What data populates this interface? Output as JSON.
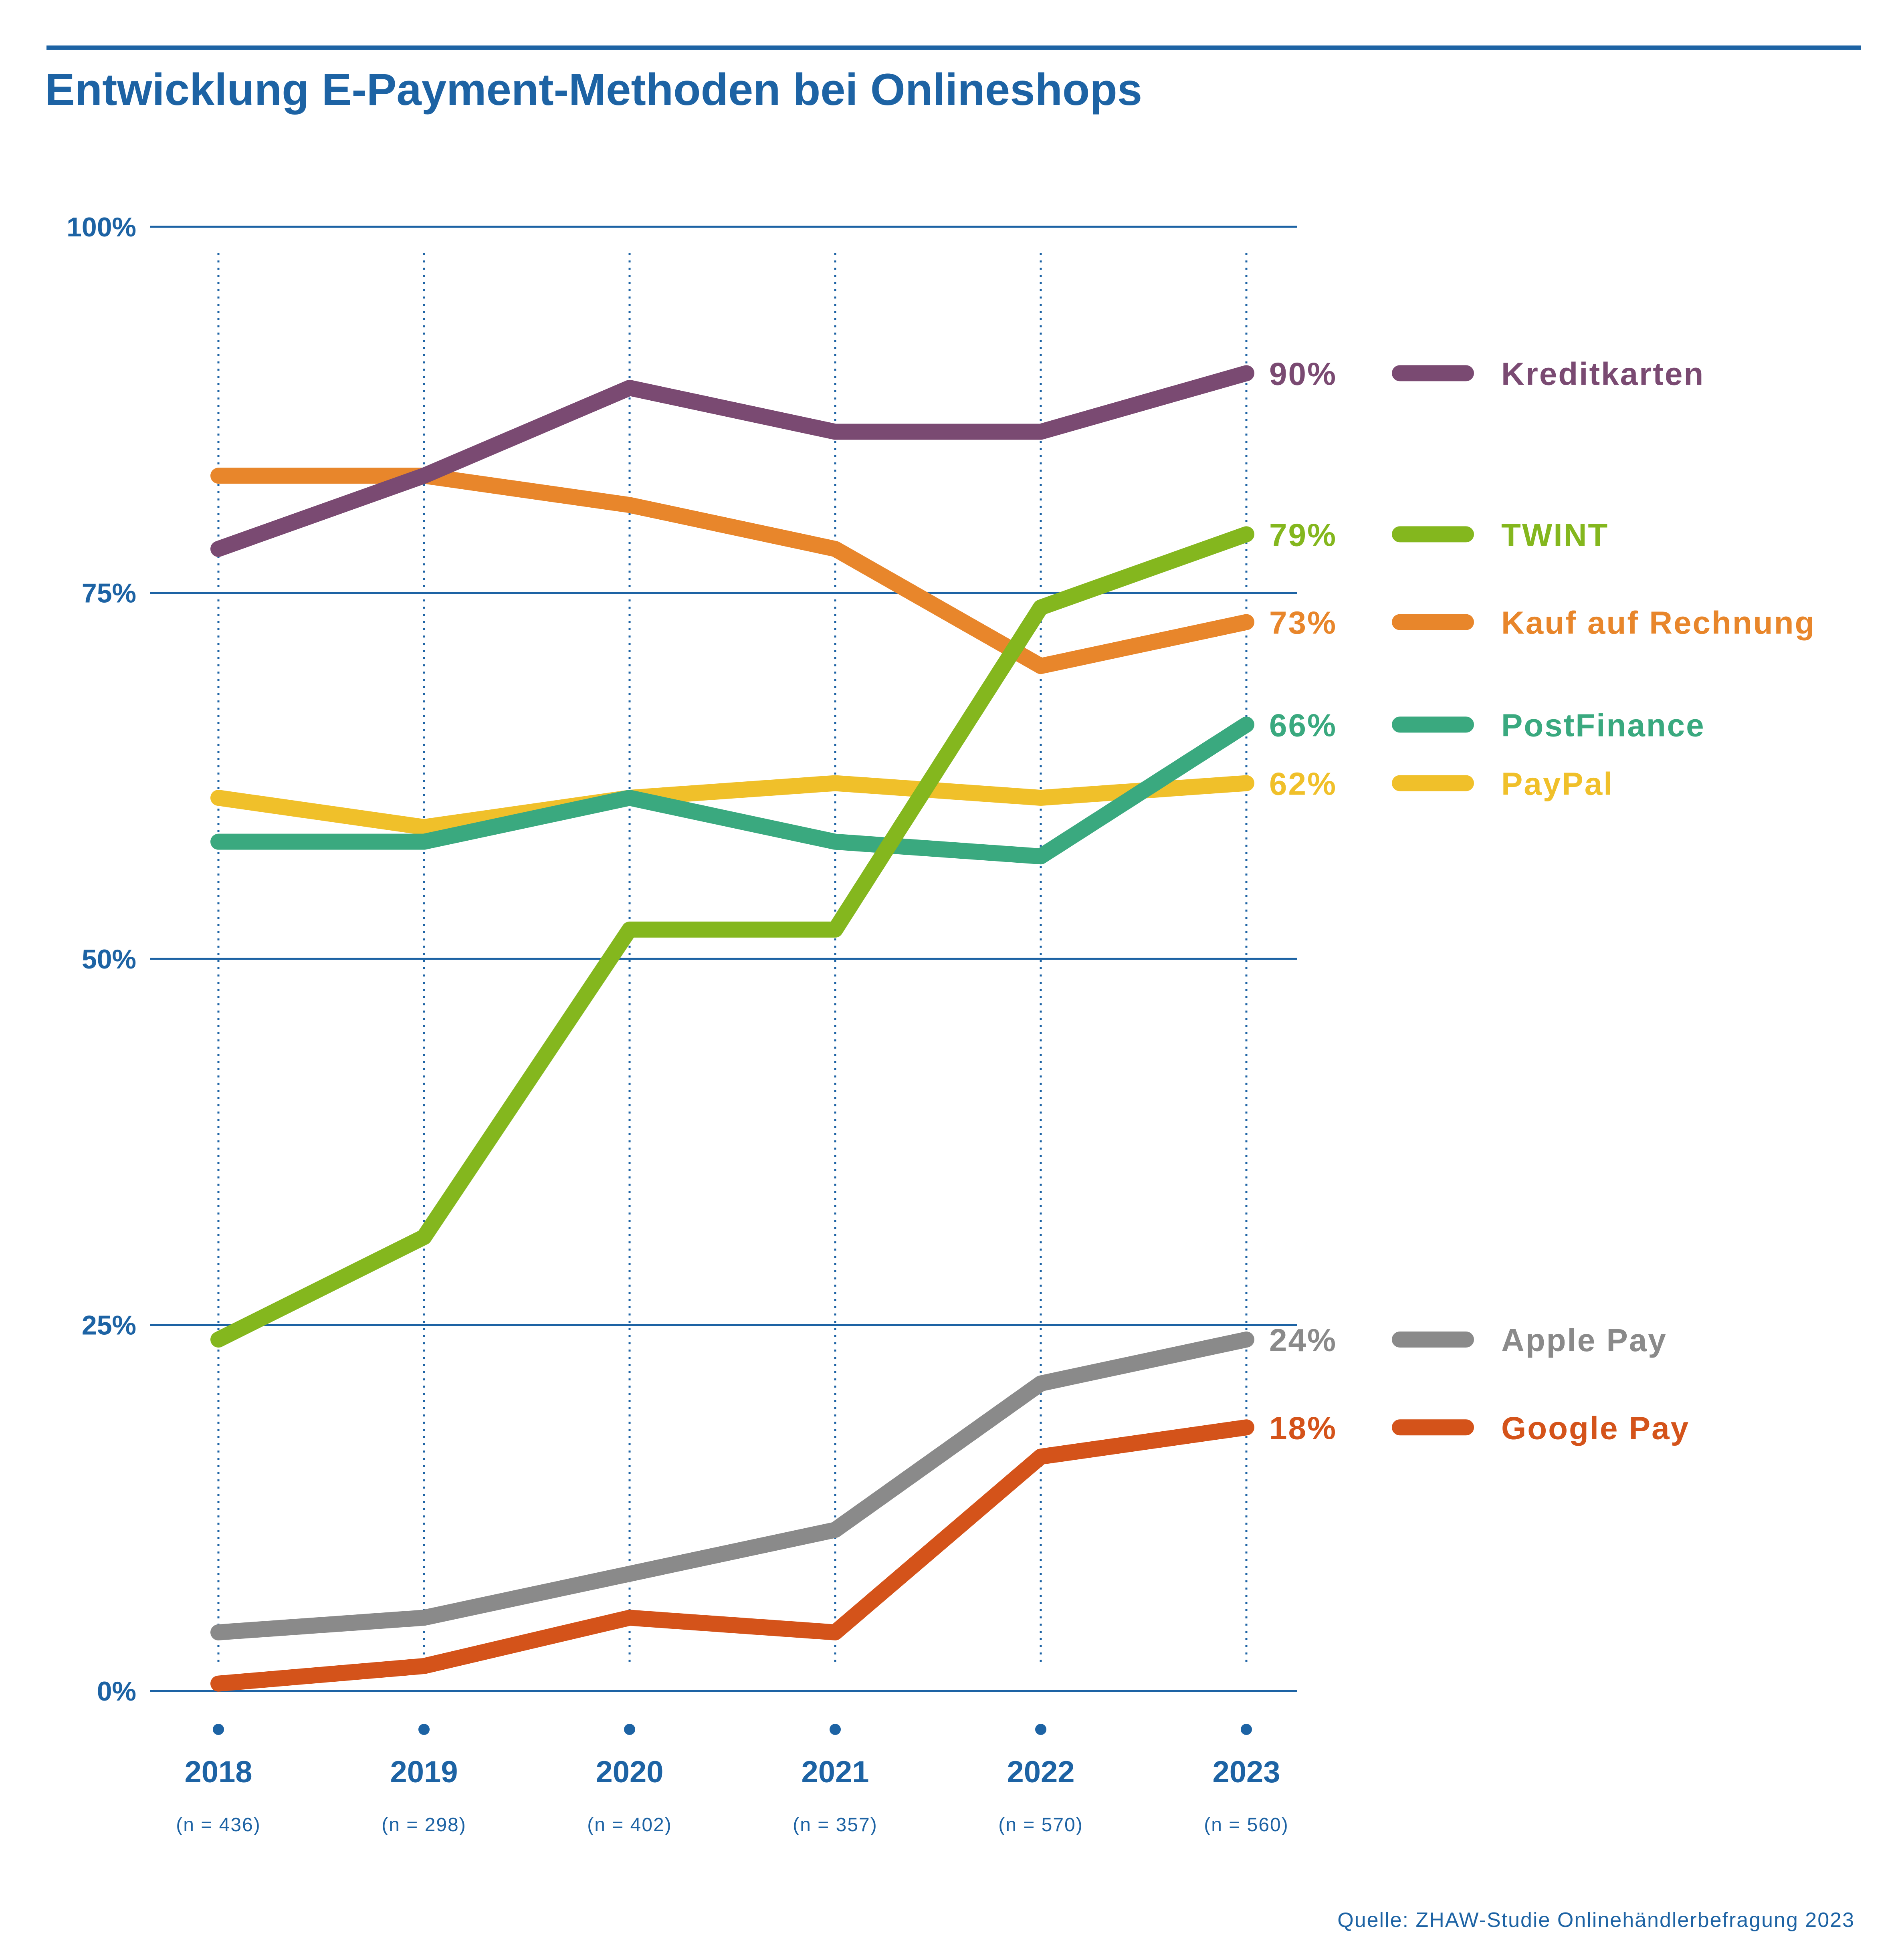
{
  "chart_data": {
    "type": "line",
    "title": "Entwicklung E-Payment-Methoden bei Onlineshops",
    "x": [
      "2018",
      "2019",
      "2020",
      "2021",
      "2022",
      "2023"
    ],
    "sample_sizes": [
      "(n = 436)",
      "(n = 298)",
      "(n = 402)",
      "(n = 357)",
      "(n = 570)",
      "(n = 560)"
    ],
    "y_ticks": [
      "0%",
      "25%",
      "50%",
      "75%",
      "100%"
    ],
    "ylim": [
      0,
      100
    ],
    "series": [
      {
        "name": "Kreditkarten",
        "color": "#7a4a72",
        "values": [
          78,
          83,
          89,
          86,
          86,
          90
        ],
        "end_label": "90%"
      },
      {
        "name": "TWINT",
        "color": "#84b71e",
        "values": [
          24,
          31,
          52,
          52,
          74,
          79
        ],
        "end_label": "79%"
      },
      {
        "name": "Kauf auf Rechnung",
        "color": "#e8862b",
        "values": [
          83,
          83,
          81,
          78,
          70,
          73
        ],
        "end_label": "73%"
      },
      {
        "name": "PostFinance",
        "color": "#3aa97f",
        "values": [
          58,
          58,
          61,
          58,
          57,
          66
        ],
        "end_label": "66%"
      },
      {
        "name": "PayPal",
        "color": "#f0c02a",
        "values": [
          61,
          59,
          61,
          62,
          61,
          62
        ],
        "end_label": "62%"
      },
      {
        "name": "Apple Pay",
        "color": "#8a8a8a",
        "values": [
          4,
          5,
          8,
          11,
          21,
          24
        ],
        "end_label": "24%"
      },
      {
        "name": "Google Pay",
        "color": "#d4531a",
        "values": [
          0.5,
          1.7,
          5,
          4,
          16,
          18
        ],
        "end_label": "18%"
      }
    ],
    "source": "Quelle: ZHAW-Studie Onlinehändlerbefragung 2023",
    "grid": true,
    "legend": "right"
  },
  "colors": {
    "accent": "#1d63a4"
  }
}
